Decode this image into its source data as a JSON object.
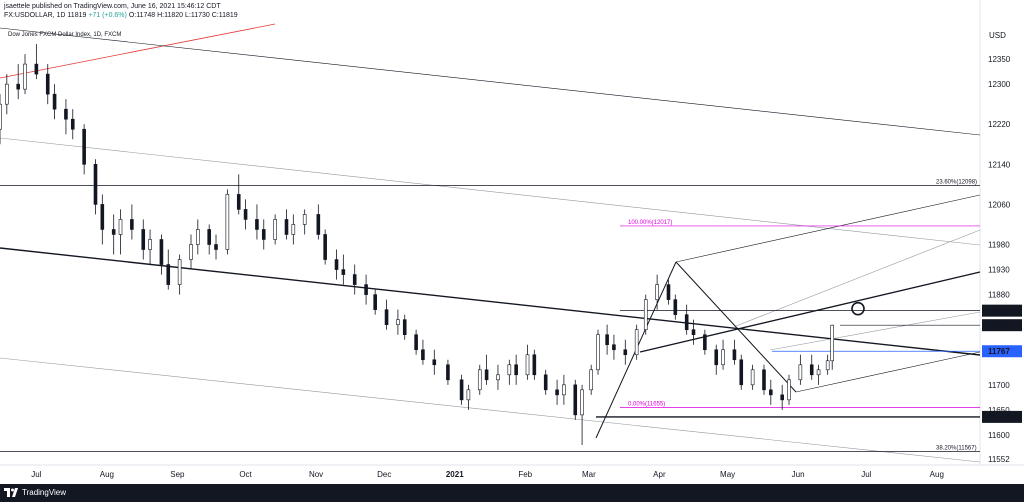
{
  "header": {
    "published": "jsaettele published on TradingView.com, June 16, 2021 15:46:12 CDT",
    "symbol": "FX:USDOLLAR, 1D",
    "last": "11819",
    "change": "+71 (+0.6%)",
    "ohlc": "O:11748 H:11820 L:11730 C:11819"
  },
  "chart_title": "Dow Jones FXCM Dollar Index, 1D, FXCM",
  "footer": {
    "brand": "TradingView"
  },
  "colors": {
    "up": "#26a69a",
    "candle": "#131722",
    "fib_retr": "#131722",
    "fib_ext": "#e000e0",
    "red_line": "#e53935",
    "level_blue": "#2962ff"
  },
  "chart_data": {
    "type": "candlestick",
    "title": "Dow Jones FXCM Dollar Index, 1D, FXCM",
    "y_axis": {
      "currency": "USD",
      "ticks": [
        "12350",
        "12300",
        "12220",
        "12140",
        "12060",
        "11980",
        "11930",
        "11880",
        "11700",
        "11650",
        "11600",
        "11552"
      ],
      "range": [
        11540,
        12420
      ]
    },
    "x_axis": {
      "ticks": [
        "Jul",
        "Aug",
        "Sep",
        "Oct",
        "Nov",
        "Dec",
        "2021",
        "Feb",
        "Mar",
        "Apr",
        "May",
        "Jun",
        "Jul",
        "Aug"
      ],
      "range": [
        "2020-06-15",
        "2021-08-20"
      ]
    },
    "price_labels": [
      {
        "value": "11848",
        "style": "dark"
      },
      {
        "value": "11819",
        "style": "dark"
      },
      {
        "value": "11767",
        "style": "blue"
      },
      {
        "value": "11636",
        "style": "dark"
      }
    ],
    "annotations": [
      {
        "text": "23.60%(12098)",
        "price": 12098
      },
      {
        "text": "100.00%(12017)",
        "price": 12017
      },
      {
        "text": "0.00%(11655)",
        "price": 11655
      },
      {
        "text": "38.20%(11567)",
        "price": 11567
      }
    ],
    "candles": [
      [
        "2020-06-15",
        12210,
        12280,
        12180,
        12260
      ],
      [
        "2020-06-18",
        12260,
        12320,
        12240,
        12300
      ],
      [
        "2020-06-23",
        12300,
        12340,
        12270,
        12290
      ],
      [
        "2020-06-26",
        12290,
        12360,
        12280,
        12340
      ],
      [
        "2020-07-01",
        12340,
        12380,
        12310,
        12320
      ],
      [
        "2020-07-06",
        12320,
        12340,
        12260,
        12280
      ],
      [
        "2020-07-09",
        12280,
        12300,
        12230,
        12250
      ],
      [
        "2020-07-14",
        12250,
        12270,
        12200,
        12230
      ],
      [
        "2020-07-17",
        12230,
        12250,
        12190,
        12210
      ],
      [
        "2020-07-22",
        12210,
        12220,
        12120,
        12140
      ],
      [
        "2020-07-27",
        12140,
        12150,
        12040,
        12060
      ],
      [
        "2020-07-30",
        12060,
        12080,
        11980,
        12010
      ],
      [
        "2020-08-04",
        12010,
        12040,
        11960,
        12000
      ],
      [
        "2020-08-07",
        12000,
        12050,
        11960,
        12030
      ],
      [
        "2020-08-12",
        12030,
        12060,
        11990,
        12010
      ],
      [
        "2020-08-17",
        12010,
        12030,
        11950,
        11970
      ],
      [
        "2020-08-20",
        11970,
        12010,
        11940,
        11990
      ],
      [
        "2020-08-25",
        11990,
        12000,
        11920,
        11940
      ],
      [
        "2020-08-28",
        11940,
        11970,
        11890,
        11900
      ],
      [
        "2020-09-02",
        11900,
        11960,
        11880,
        11950
      ],
      [
        "2020-09-07",
        11950,
        12000,
        11930,
        11980
      ],
      [
        "2020-09-10",
        11980,
        12030,
        11960,
        12010
      ],
      [
        "2020-09-15",
        12010,
        12020,
        11960,
        11980
      ],
      [
        "2020-09-18",
        11980,
        12000,
        11950,
        11970
      ],
      [
        "2020-09-23",
        11970,
        12090,
        11960,
        12080
      ],
      [
        "2020-09-28",
        12080,
        12120,
        12040,
        12050
      ],
      [
        "2020-10-01",
        12050,
        12070,
        12010,
        12030
      ],
      [
        "2020-10-06",
        12030,
        12060,
        11990,
        12010
      ],
      [
        "2020-10-09",
        12010,
        12030,
        11970,
        11990
      ],
      [
        "2020-10-14",
        11990,
        12040,
        11980,
        12030
      ],
      [
        "2020-10-19",
        12030,
        12050,
        11990,
        12000
      ],
      [
        "2020-10-22",
        12000,
        12040,
        11980,
        12020
      ],
      [
        "2020-10-27",
        12020,
        12050,
        12000,
        12040
      ],
      [
        "2020-11-02",
        12040,
        12060,
        11990,
        12000
      ],
      [
        "2020-11-05",
        12000,
        12010,
        11940,
        11950
      ],
      [
        "2020-11-10",
        11950,
        11970,
        11910,
        11930
      ],
      [
        "2020-11-13",
        11930,
        11960,
        11900,
        11920
      ],
      [
        "2020-11-18",
        11920,
        11940,
        11880,
        11900
      ],
      [
        "2020-11-23",
        11900,
        11920,
        11860,
        11880
      ],
      [
        "2020-11-27",
        11880,
        11890,
        11840,
        11850
      ],
      [
        "2020-12-02",
        11850,
        11870,
        11810,
        11820
      ],
      [
        "2020-12-07",
        11820,
        11850,
        11800,
        11830
      ],
      [
        "2020-12-10",
        11830,
        11840,
        11790,
        11800
      ],
      [
        "2020-12-15",
        11800,
        11810,
        11760,
        11770
      ],
      [
        "2020-12-18",
        11770,
        11790,
        11740,
        11750
      ],
      [
        "2020-12-23",
        11750,
        11770,
        11720,
        11740
      ],
      [
        "2020-12-29",
        11740,
        11750,
        11700,
        11710
      ],
      [
        "2021-01-04",
        11710,
        11720,
        11660,
        11670
      ],
      [
        "2021-01-07",
        11670,
        11700,
        11650,
        11690
      ],
      [
        "2021-01-12",
        11690,
        11740,
        11680,
        11730
      ],
      [
        "2021-01-15",
        11730,
        11760,
        11700,
        11710
      ],
      [
        "2021-01-20",
        11710,
        11740,
        11690,
        11720
      ],
      [
        "2021-01-25",
        11720,
        11750,
        11700,
        11740
      ],
      [
        "2021-01-28",
        11740,
        11760,
        11700,
        11720
      ],
      [
        "2021-02-02",
        11720,
        11780,
        11710,
        11760
      ],
      [
        "2021-02-05",
        11760,
        11770,
        11710,
        11720
      ],
      [
        "2021-02-10",
        11720,
        11730,
        11680,
        11690
      ],
      [
        "2021-02-15",
        11690,
        11710,
        11660,
        11680
      ],
      [
        "2021-02-18",
        11680,
        11720,
        11660,
        11700
      ],
      [
        "2021-02-23",
        11700,
        11710,
        11630,
        11640
      ],
      [
        "2021-02-26",
        11640,
        11700,
        11580,
        11690
      ],
      [
        "2021-03-02",
        11690,
        11740,
        11680,
        11730
      ],
      [
        "2021-03-05",
        11730,
        11810,
        11720,
        11800
      ],
      [
        "2021-03-09",
        11800,
        11820,
        11760,
        11780
      ],
      [
        "2021-03-12",
        11780,
        11800,
        11750,
        11770
      ],
      [
        "2021-03-17",
        11770,
        11790,
        11740,
        11760
      ],
      [
        "2021-03-22",
        11760,
        11820,
        11750,
        11810
      ],
      [
        "2021-03-26",
        11810,
        11880,
        11800,
        11870
      ],
      [
        "2021-03-31",
        11870,
        11920,
        11850,
        11900
      ],
      [
        "2021-04-05",
        11900,
        11910,
        11860,
        11870
      ],
      [
        "2021-04-08",
        11870,
        11880,
        11830,
        11840
      ],
      [
        "2021-04-13",
        11840,
        11860,
        11800,
        11810
      ],
      [
        "2021-04-16",
        11810,
        11830,
        11780,
        11800
      ],
      [
        "2021-04-21",
        11800,
        11810,
        11760,
        11770
      ],
      [
        "2021-04-26",
        11770,
        11780,
        11720,
        11740
      ],
      [
        "2021-04-29",
        11740,
        11790,
        11730,
        11770
      ],
      [
        "2021-05-04",
        11770,
        11790,
        11740,
        11750
      ],
      [
        "2021-05-07",
        11750,
        11760,
        11690,
        11700
      ],
      [
        "2021-05-12",
        11700,
        11740,
        11690,
        11730
      ],
      [
        "2021-05-17",
        11730,
        11740,
        11680,
        11690
      ],
      [
        "2021-05-20",
        11690,
        11710,
        11660,
        11680
      ],
      [
        "2021-05-25",
        11680,
        11700,
        11650,
        11670
      ],
      [
        "2021-05-28",
        11670,
        11720,
        11660,
        11710
      ],
      [
        "2021-06-02",
        11710,
        11760,
        11700,
        11740
      ],
      [
        "2021-06-07",
        11740,
        11760,
        11710,
        11720
      ],
      [
        "2021-06-10",
        11720,
        11740,
        11700,
        11730
      ],
      [
        "2021-06-14",
        11730,
        11760,
        11720,
        11748
      ],
      [
        "2021-06-16",
        11748,
        11820,
        11730,
        11819
      ]
    ]
  }
}
